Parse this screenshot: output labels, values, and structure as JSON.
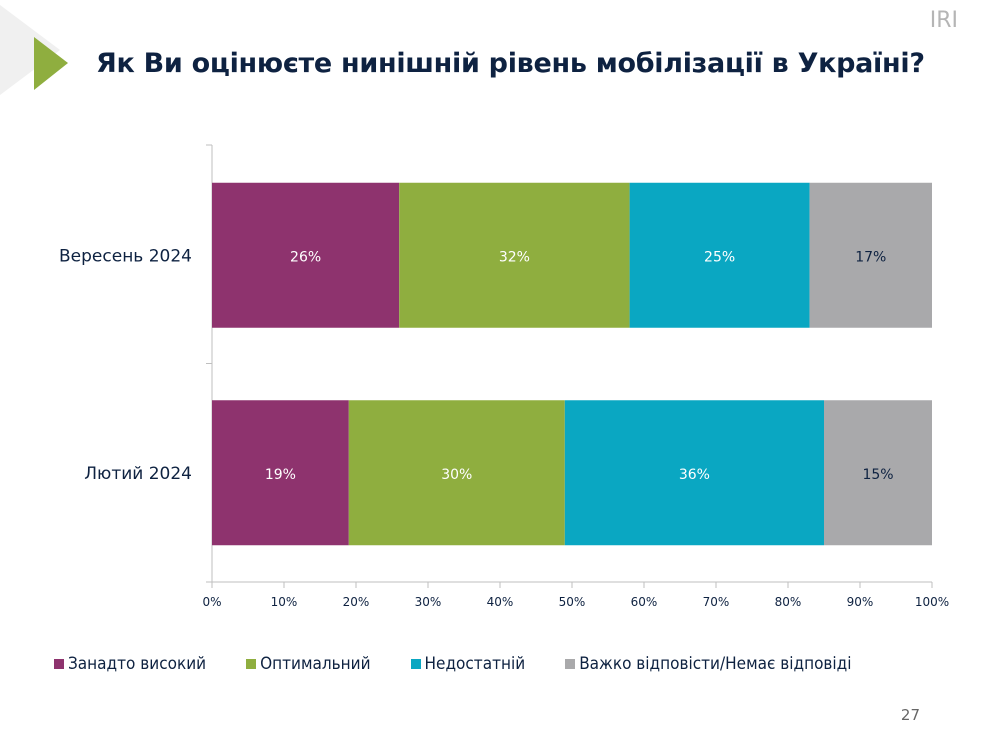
{
  "header": {
    "title": "Як Ви оцінюєте нинішній рівень мобілізації в Україні?",
    "logo": "IRI"
  },
  "page_number": "27",
  "colors": {
    "accent": "#8fae3f",
    "title": "#0e2241"
  },
  "chart_data": {
    "type": "bar",
    "orientation": "horizontal",
    "stacked": true,
    "categories": [
      "Вересень 2024",
      "Лютий 2024"
    ],
    "series": [
      {
        "name": "Занадто високий",
        "color": "#8e336e",
        "values": [
          26,
          19
        ]
      },
      {
        "name": "Оптимальний",
        "color": "#8fae3f",
        "values": [
          32,
          30
        ]
      },
      {
        "name": "Недостатній",
        "color": "#0aa7c2",
        "values": [
          25,
          36
        ]
      },
      {
        "name": "Важко відповісти/Немає відповіді",
        "color": "#a9a9ab",
        "values": [
          17,
          15
        ]
      }
    ],
    "xlim": [
      0,
      100
    ],
    "x_ticks": [
      "0%",
      "10%",
      "20%",
      "30%",
      "40%",
      "50%",
      "60%",
      "70%",
      "80%",
      "90%",
      "100%"
    ],
    "data_label_suffix": "%",
    "grid": false,
    "legend": "bottom"
  }
}
